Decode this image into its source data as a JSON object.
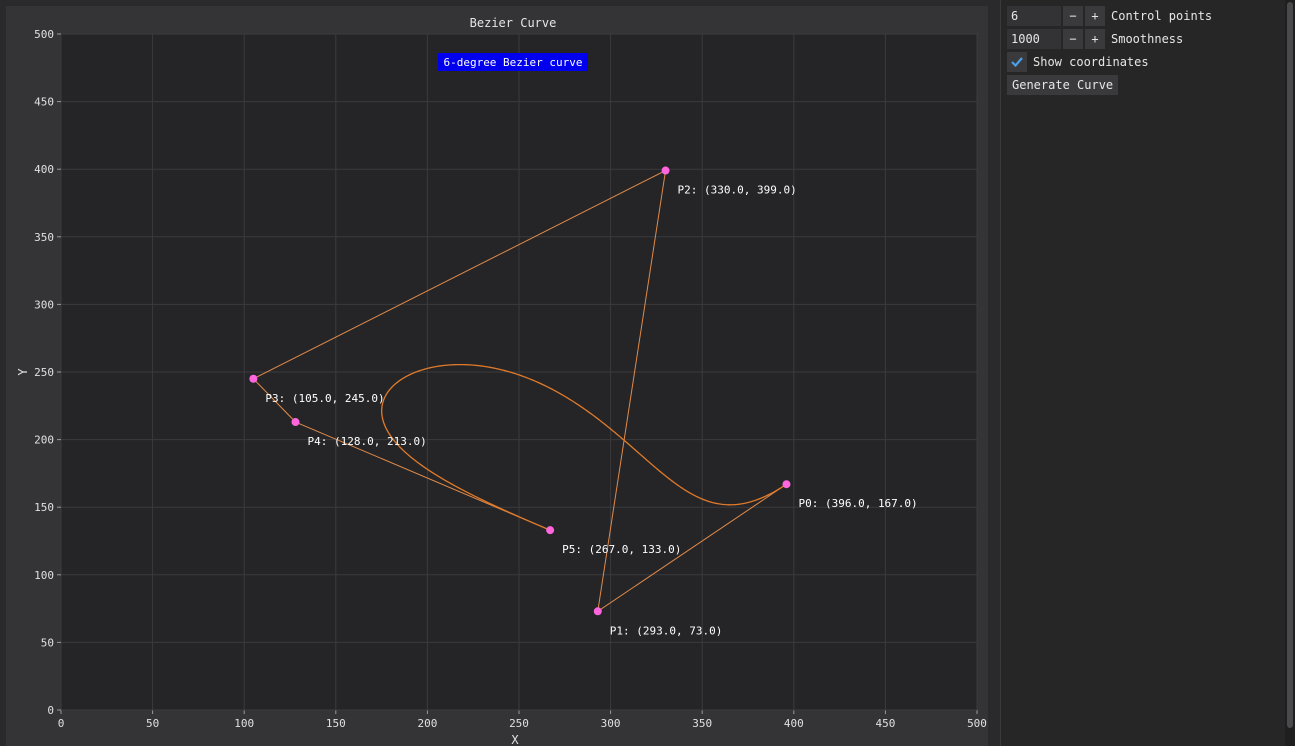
{
  "window": {
    "title": "Bezier Curve"
  },
  "chart_data": {
    "type": "line",
    "title": "Bezier Curve",
    "annotation": "6-degree Bezier curve",
    "xlabel": "X",
    "ylabel": "Y",
    "xlim": [
      0,
      500
    ],
    "ylim": [
      0,
      500
    ],
    "xticks": [
      0,
      50,
      100,
      150,
      200,
      250,
      300,
      350,
      400,
      450,
      500
    ],
    "yticks": [
      0,
      50,
      100,
      150,
      200,
      250,
      300,
      350,
      400,
      450,
      500
    ],
    "grid": true,
    "control_points": [
      {
        "x": 396,
        "y": 167,
        "label": "P0: (396.0, 167.0)"
      },
      {
        "x": 293,
        "y": 73,
        "label": "P1: (293.0, 73.0)"
      },
      {
        "x": 330,
        "y": 399,
        "label": "P2: (330.0, 399.0)"
      },
      {
        "x": 105,
        "y": 245,
        "label": "P3: (105.0, 245.0)"
      },
      {
        "x": 128,
        "y": 213,
        "label": "P4: (128.0, 213.0)"
      },
      {
        "x": 267,
        "y": 133,
        "label": "P5: (267.0, 133.0)"
      }
    ],
    "colors": {
      "curve": "#e07a2a",
      "polygon": "#e08a4a",
      "point": "#ff66dd",
      "annotation_bg": "#0000ee",
      "grid": "#3b3b3d"
    }
  },
  "controls": {
    "control_points": {
      "value": "6",
      "label": "Control points",
      "minus": "−",
      "plus": "+"
    },
    "smoothness": {
      "value": "1000",
      "label": "Smoothness",
      "minus": "−",
      "plus": "+"
    },
    "show_coordinates": {
      "label": "Show coordinates",
      "checked": true
    },
    "generate_button": "Generate Curve"
  }
}
